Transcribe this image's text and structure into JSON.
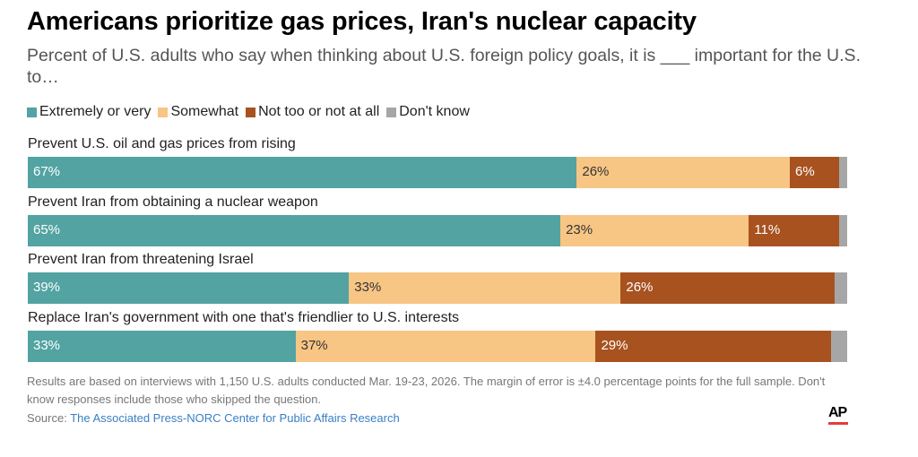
{
  "header": {
    "title": "Americans prioritize gas prices, Iran's nuclear capacity",
    "subtitle": "Percent of U.S. adults who say when thinking about U.S. foreign policy goals, it is ___ important for the U.S. to…"
  },
  "chart_data": {
    "type": "bar",
    "orientation": "horizontal",
    "stacked": true,
    "title": "Americans prioritize gas prices, Iran's nuclear capacity",
    "subtitle": "Percent of U.S. adults who say when thinking about U.S. foreign policy goals, it is ___ important for the U.S. to…",
    "xlabel": "",
    "ylabel": "",
    "xlim": [
      0,
      100
    ],
    "legend_position": "top-left",
    "categories": [
      "Prevent U.S. oil and gas prices from rising",
      "Prevent Iran from obtaining a nuclear weapon",
      "Prevent Iran from threatening Israel",
      "Replace Iran's government with one that's friendlier to U.S. interests"
    ],
    "series": [
      {
        "name": "Extremely or very",
        "color": "#52a3a2",
        "label_color": "#ffffff",
        "values": [
          67,
          65,
          39,
          33
        ],
        "labels": [
          "67%",
          "65%",
          "39%",
          "33%"
        ]
      },
      {
        "name": "Somewhat",
        "color": "#f7c584",
        "label_color": "#333333",
        "values": [
          26,
          23,
          33,
          37
        ],
        "labels": [
          "26%",
          "23%",
          "33%",
          "37%"
        ]
      },
      {
        "name": "Not too or not at all",
        "color": "#a85220",
        "label_color": "#ffffff",
        "values": [
          6,
          11,
          26,
          29
        ],
        "labels": [
          "6%",
          "11%",
          "26%",
          "29%"
        ]
      },
      {
        "name": "Don't know",
        "color": "#a6a6a6",
        "label_color": "#333333",
        "values": [
          1,
          1,
          1.5,
          2
        ],
        "labels": [
          "",
          "",
          "",
          ""
        ]
      }
    ]
  },
  "footer": {
    "notes": "Results are based on interviews with 1,150 U.S. adults conducted Mar. 19-23, 2026. The margin of error is ±4.0 percentage points for the full sample. Don't know responses include those who skipped the question.",
    "source_prefix": "Source: ",
    "source_link": "The Associated Press-NORC Center for Public Affairs Research",
    "logo": "AP"
  }
}
